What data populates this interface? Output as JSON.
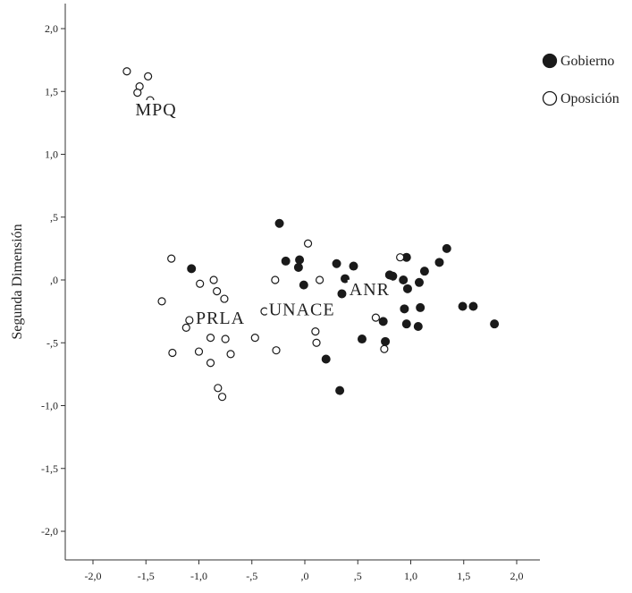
{
  "chart_data": {
    "type": "scatter",
    "title": "",
    "xlabel": "",
    "ylabel": "Segunda Dimensión",
    "xlim": [
      -2.3,
      2.2
    ],
    "ylim": [
      -2.2,
      2.2
    ],
    "x_ticks": [
      {
        "value": -2.0,
        "label": "-2,0"
      },
      {
        "value": -1.5,
        "label": "-1,5"
      },
      {
        "value": -1.0,
        "label": "-1,0"
      },
      {
        "value": -0.5,
        "label": "-,5"
      },
      {
        "value": 0.0,
        "label": ",0"
      },
      {
        "value": 0.5,
        "label": ",5"
      },
      {
        "value": 1.0,
        "label": "1,0"
      },
      {
        "value": 1.5,
        "label": "1,5"
      },
      {
        "value": 2.0,
        "label": "2,0"
      }
    ],
    "y_ticks": [
      {
        "value": 2.0,
        "label": "2,0"
      },
      {
        "value": 1.5,
        "label": "1,5"
      },
      {
        "value": 1.0,
        "label": "1,0"
      },
      {
        "value": 0.5,
        "label": ",5"
      },
      {
        "value": 0.0,
        "label": ",0"
      },
      {
        "value": -0.5,
        "label": "-,5"
      },
      {
        "value": -1.0,
        "label": "-1,0"
      },
      {
        "value": -1.5,
        "label": "-1,5"
      },
      {
        "value": -2.0,
        "label": "-2,0"
      }
    ],
    "grid": false,
    "legend_position": "top-right",
    "series": [
      {
        "name": "Gobierno",
        "marker": "filled-circle",
        "color": "#1a1a1a",
        "points": [
          [
            -0.24,
            0.45
          ],
          [
            -0.18,
            0.15
          ],
          [
            -0.05,
            0.16
          ],
          [
            -0.06,
            0.1
          ],
          [
            -0.01,
            -0.04
          ],
          [
            0.3,
            0.13
          ],
          [
            0.46,
            0.11
          ],
          [
            0.38,
            0.01
          ],
          [
            0.35,
            -0.11
          ],
          [
            0.2,
            -0.63
          ],
          [
            0.33,
            -0.88
          ],
          [
            0.54,
            -0.47
          ],
          [
            0.74,
            -0.33
          ],
          [
            0.76,
            -0.49
          ],
          [
            0.8,
            0.04
          ],
          [
            0.83,
            0.03
          ],
          [
            0.93,
            0.0
          ],
          [
            0.96,
            0.18
          ],
          [
            0.97,
            -0.07
          ],
          [
            1.08,
            -0.02
          ],
          [
            1.13,
            0.07
          ],
          [
            1.09,
            -0.22
          ],
          [
            0.94,
            -0.23
          ],
          [
            0.96,
            -0.35
          ],
          [
            1.07,
            -0.37
          ],
          [
            1.27,
            0.14
          ],
          [
            1.34,
            0.25
          ],
          [
            1.49,
            -0.21
          ],
          [
            1.59,
            -0.21
          ],
          [
            1.79,
            -0.35
          ],
          [
            -1.07,
            0.09
          ]
        ]
      },
      {
        "name": "Oposición",
        "marker": "open-circle",
        "color": "#1a1a1a",
        "points": [
          [
            -1.68,
            1.66
          ],
          [
            -1.48,
            1.62
          ],
          [
            -1.56,
            1.54
          ],
          [
            -1.58,
            1.49
          ],
          [
            -1.46,
            1.43
          ],
          [
            -1.26,
            0.17
          ],
          [
            -1.35,
            -0.17
          ],
          [
            -1.25,
            -0.58
          ],
          [
            -1.09,
            -0.32
          ],
          [
            -1.12,
            -0.38
          ],
          [
            -0.99,
            -0.03
          ],
          [
            -0.86,
            0.0
          ],
          [
            -0.83,
            -0.09
          ],
          [
            -0.76,
            -0.15
          ],
          [
            -0.89,
            -0.46
          ],
          [
            -0.75,
            -0.47
          ],
          [
            -0.7,
            -0.59
          ],
          [
            -1.0,
            -0.57
          ],
          [
            -0.89,
            -0.66
          ],
          [
            -0.82,
            -0.86
          ],
          [
            -0.78,
            -0.93
          ],
          [
            -0.47,
            -0.46
          ],
          [
            -0.38,
            -0.25
          ],
          [
            -0.28,
            0.0
          ],
          [
            -0.27,
            -0.56
          ],
          [
            0.03,
            0.29
          ],
          [
            0.14,
            0.0
          ],
          [
            0.1,
            -0.41
          ],
          [
            0.11,
            -0.5
          ],
          [
            0.67,
            -0.3
          ],
          [
            0.75,
            -0.55
          ],
          [
            0.9,
            0.18
          ]
        ]
      }
    ],
    "annotations": [
      {
        "text": "MPQ",
        "x": -1.6,
        "y": 1.31
      },
      {
        "text": "PRLA",
        "x": -1.03,
        "y": -0.35
      },
      {
        "text": "UNACE",
        "x": -0.34,
        "y": -0.28
      },
      {
        "text": "ANR",
        "x": 0.42,
        "y": -0.12
      }
    ]
  }
}
